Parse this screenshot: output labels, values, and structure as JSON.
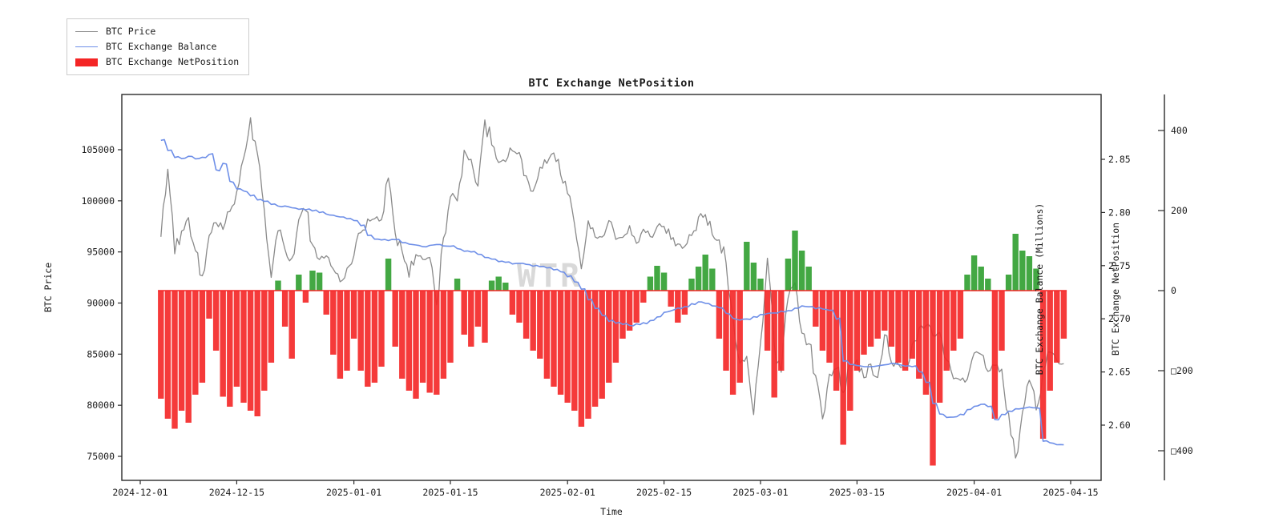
{
  "title": "BTC Exchange NetPosition",
  "watermark": "WTR",
  "legend": {
    "items": [
      {
        "label": "BTC Price",
        "type": "line",
        "color": "#8a8a8a"
      },
      {
        "label": "BTC Exchange Balance",
        "type": "line",
        "color": "#6e8fe8"
      },
      {
        "label": "BTC Exchange NetPosition",
        "type": "patch",
        "color": "#f42525"
      }
    ]
  },
  "axes": {
    "x": {
      "label": "Time",
      "ticks": [
        {
          "label": "2024-12-01",
          "day": 0
        },
        {
          "label": "2024-12-15",
          "day": 14
        },
        {
          "label": "2025-01-01",
          "day": 31
        },
        {
          "label": "2025-01-15",
          "day": 45
        },
        {
          "label": "2025-02-01",
          "day": 62
        },
        {
          "label": "2025-02-15",
          "day": 76
        },
        {
          "label": "2025-03-01",
          "day": 90
        },
        {
          "label": "2025-03-15",
          "day": 104
        },
        {
          "label": "2025-04-01",
          "day": 121
        },
        {
          "label": "2025-04-15",
          "day": 135
        }
      ]
    },
    "price": {
      "label": "BTC Price",
      "ticks": [
        {
          "label": "105000",
          "value": 105000
        },
        {
          "label": "100000",
          "value": 100000
        },
        {
          "label": "95000",
          "value": 95000
        },
        {
          "label": "90000",
          "value": 90000
        },
        {
          "label": "85000",
          "value": 85000
        },
        {
          "label": "80000",
          "value": 80000
        },
        {
          "label": "75000",
          "value": 75000
        }
      ]
    },
    "balance": {
      "label": "BTC Exchange Balance (Millions)",
      "ticks": [
        {
          "label": "2.85",
          "value": 2.85
        },
        {
          "label": "2.80",
          "value": 2.8
        },
        {
          "label": "2.75",
          "value": 2.75
        },
        {
          "label": "2.70",
          "value": 2.7
        },
        {
          "label": "2.65",
          "value": 2.65
        },
        {
          "label": "2.60",
          "value": 2.6
        }
      ]
    },
    "netposition": {
      "label": "BTC Exchange NetPosition",
      "ticks": [
        {
          "label": "400",
          "value": 400
        },
        {
          "label": "200",
          "value": 200
        },
        {
          "label": "0",
          "value": 0
        },
        {
          "label": "□200",
          "value": -200
        },
        {
          "label": "□400",
          "value": -400
        }
      ]
    }
  },
  "chart_data": {
    "type": "line+bar",
    "title": "BTC Exchange NetPosition",
    "xlabel": "Time",
    "start_date": "2024-12-04",
    "frequency": "daily",
    "x_tick_labels": [
      "2024-12-01",
      "2024-12-15",
      "2025-01-01",
      "2025-01-15",
      "2025-02-01",
      "2025-02-15",
      "2025-03-01",
      "2025-03-15",
      "2025-04-01",
      "2025-04-15"
    ],
    "axis_ranges": {
      "price": [
        72600,
        110400
      ],
      "balance": [
        2.548,
        2.911
      ],
      "netposition": [
        -474,
        490
      ]
    },
    "series": [
      {
        "name": "BTC Price",
        "type": "line",
        "axis": "price",
        "color": "#8a8a8a",
        "values": [
          96400,
          103000,
          94800,
          97200,
          98400,
          95000,
          92800,
          96500,
          98000,
          97300,
          98800,
          101000,
          104200,
          108200,
          104500,
          99000,
          92600,
          97000,
          95200,
          94300,
          98100,
          99200,
          95800,
          94200,
          94500,
          93400,
          92000,
          93500,
          94600,
          96900,
          98200,
          98100,
          98300,
          102200,
          96900,
          95000,
          92500,
          94700,
          94300,
          94500,
          89800,
          96500,
          100500,
          100000,
          105100,
          104000,
          101300,
          108000,
          105500,
          103800,
          103900,
          105000,
          104800,
          102600,
          100800,
          103200,
          103800,
          104700,
          102500,
          100600,
          97700,
          93500,
          98000,
          96600,
          96500,
          98000,
          96100,
          96500,
          97500,
          95800,
          97300,
          96600,
          97600,
          97500,
          96200,
          95700,
          95600,
          96600,
          98300,
          98800,
          96600,
          96300,
          94000,
          88700,
          84200,
          84700,
          79000,
          86000,
          94300,
          86000,
          83200,
          90600,
          92000,
          87000,
          86100,
          82800,
          78800,
          82900,
          83700,
          81100,
          84000,
          84300,
          82600,
          84000,
          82700,
          86800,
          84200,
          84000,
          83800,
          86000,
          87500,
          87800,
          86900,
          87200,
          84300,
          82600,
          82300,
          82500,
          85200,
          85100,
          83200,
          83900,
          83500,
          79200,
          74800,
          79200,
          82600,
          79600,
          83500,
          85300,
          84500,
          84000
        ]
      },
      {
        "name": "BTC Exchange Balance",
        "type": "line",
        "axis": "balance",
        "color": "#6e8fe8",
        "values": [
          2.868,
          2.858,
          2.852,
          2.851,
          2.853,
          2.85,
          2.852,
          2.855,
          2.84,
          2.846,
          2.829,
          2.822,
          2.82,
          2.816,
          2.812,
          2.81,
          2.808,
          2.806,
          2.806,
          2.804,
          2.803,
          2.803,
          2.802,
          2.8,
          2.798,
          2.797,
          2.796,
          2.794,
          2.792,
          2.788,
          2.778,
          2.775,
          2.774,
          2.774,
          2.775,
          2.772,
          2.77,
          2.769,
          2.768,
          2.769,
          2.77,
          2.769,
          2.768,
          2.766,
          2.764,
          2.763,
          2.761,
          2.758,
          2.756,
          2.754,
          2.753,
          2.752,
          2.752,
          2.751,
          2.75,
          2.749,
          2.748,
          2.746,
          2.744,
          2.74,
          2.735,
          2.728,
          2.718,
          2.71,
          2.703,
          2.698,
          2.696,
          2.695,
          2.694,
          2.695,
          2.696,
          2.698,
          2.702,
          2.706,
          2.708,
          2.71,
          2.712,
          2.714,
          2.716,
          2.715,
          2.712,
          2.71,
          2.705,
          2.7,
          2.699,
          2.7,
          2.702,
          2.704,
          2.705,
          2.706,
          2.707,
          2.708,
          2.71,
          2.712,
          2.711,
          2.71,
          2.709,
          2.708,
          2.7,
          2.66,
          2.657,
          2.656,
          2.655,
          2.655,
          2.656,
          2.657,
          2.658,
          2.657,
          2.656,
          2.655,
          2.65,
          2.64,
          2.62,
          2.61,
          2.607,
          2.608,
          2.61,
          2.615,
          2.618,
          2.62,
          2.618,
          2.605,
          2.61,
          2.613,
          2.615,
          2.616,
          2.617,
          2.616,
          2.585,
          2.583,
          2.582,
          2.582
        ]
      },
      {
        "name": "BTC Exchange NetPosition",
        "type": "bar",
        "axis": "netposition",
        "color_positive": "#2f9e2f",
        "color_negative": "#f42525",
        "values": [
          -270,
          -320,
          -345,
          -300,
          -330,
          -260,
          -230,
          -70,
          -150,
          -265,
          -290,
          -240,
          -280,
          -300,
          -314,
          -250,
          -180,
          25,
          -90,
          -170,
          40,
          -30,
          50,
          45,
          -60,
          -160,
          -220,
          -200,
          -120,
          -200,
          -240,
          -230,
          -190,
          80,
          -140,
          -220,
          -250,
          -270,
          -230,
          -255,
          -260,
          -220,
          -180,
          30,
          -110,
          -140,
          -90,
          -130,
          25,
          35,
          20,
          -60,
          -80,
          -120,
          -150,
          -170,
          -220,
          -240,
          -260,
          -280,
          -300,
          -340,
          -320,
          -290,
          -270,
          -230,
          -180,
          -120,
          -100,
          -80,
          -30,
          35,
          62,
          45,
          -40,
          -80,
          -60,
          30,
          60,
          90,
          55,
          -120,
          -200,
          -260,
          -230,
          122,
          70,
          30,
          -150,
          -267,
          -200,
          80,
          150,
          100,
          60,
          -90,
          -150,
          -180,
          -250,
          -385,
          -300,
          -200,
          -160,
          -140,
          -120,
          -100,
          -140,
          -180,
          -200,
          -170,
          -220,
          -260,
          -437,
          -280,
          -200,
          -150,
          -120,
          40,
          88,
          60,
          30,
          -320,
          -150,
          40,
          142,
          100,
          86,
          55,
          -370,
          -250,
          -180,
          -120
        ]
      }
    ],
    "legend_position": "upper-left-outside",
    "grid": false
  }
}
